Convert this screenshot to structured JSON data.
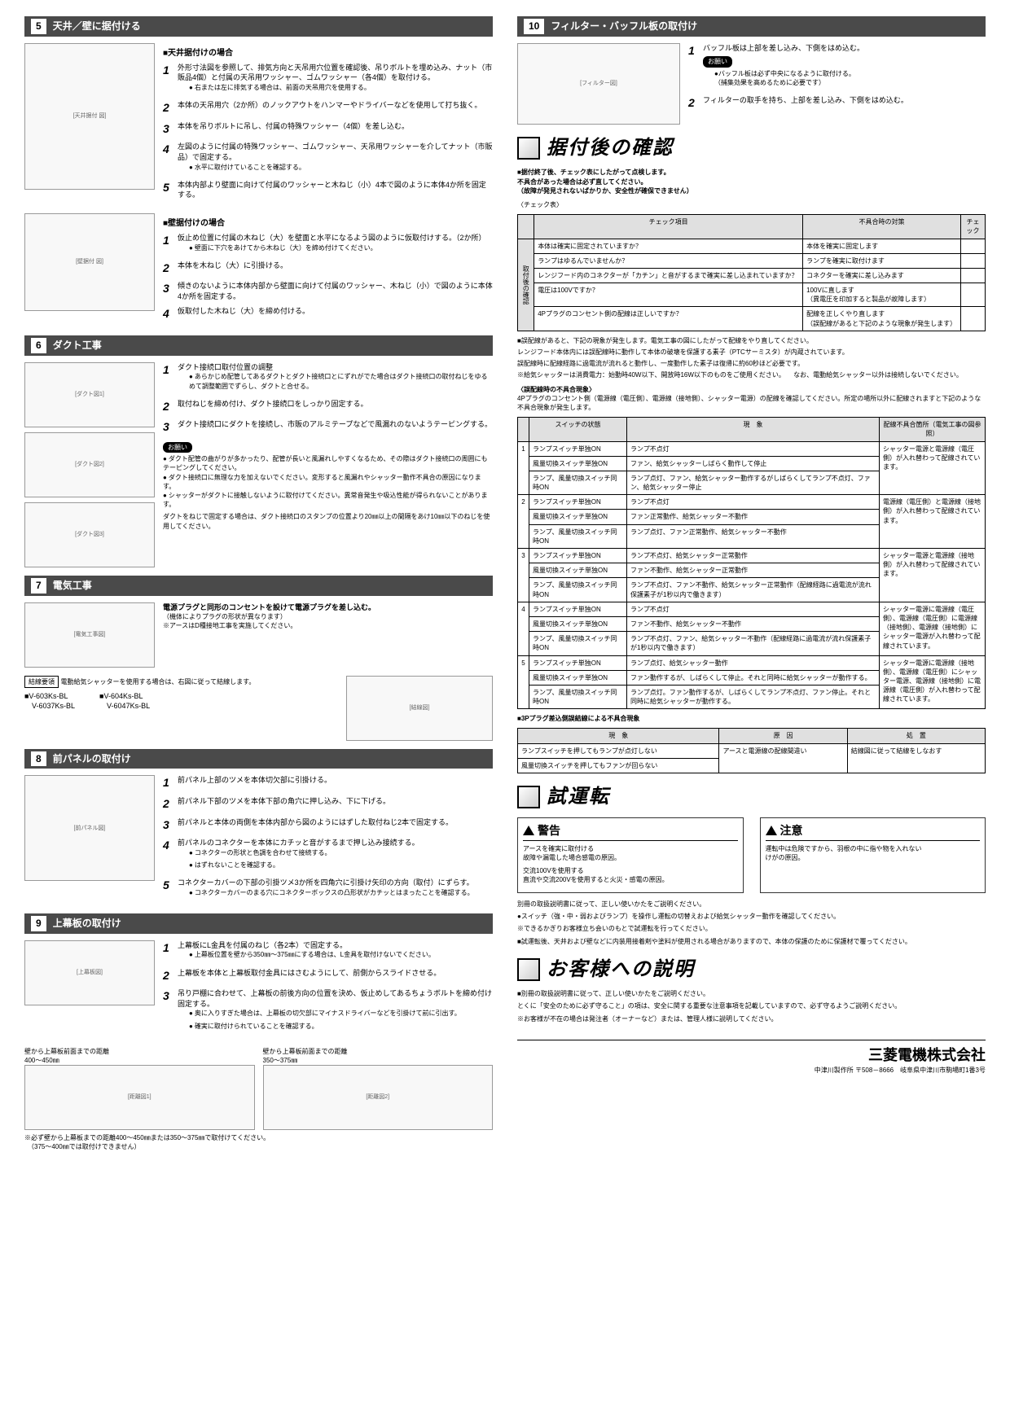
{
  "left": {
    "s5": {
      "num": "5",
      "title": "天井／壁に据付ける",
      "sub1": "■天井据付けの場合",
      "steps1": [
        {
          "n": "1",
          "t": "外形寸法図を参照して、排気方向と天吊用穴位置を確認後、吊りボルトを埋め込み、ナット（市販品4個）と付属の天吊用ワッシャー、ゴムワッシャー（各4個）を取付ける。",
          "note": "●右または左に排気する場合は、前面の天吊用穴を使用する。"
        },
        {
          "n": "2",
          "t": "本体の天吊用穴（2か所）のノックアウトをハンマーやドライバーなどを使用して打ち抜く。"
        },
        {
          "n": "3",
          "t": "本体を吊りボルトに吊し、付属の特殊ワッシャー（4個）を差し込む。"
        },
        {
          "n": "4",
          "t": "左図のように付属の特殊ワッシャー、ゴムワッシャー、天吊用ワッシャーを介してナット（市販品）で固定する。",
          "note": "●水平に取付けていることを確認する。"
        },
        {
          "n": "5",
          "t": "本体内部より壁面に向けて付属のワッシャーと木ねじ（小）4本で図のように本体4か所を固定する。"
        }
      ],
      "sub2": "■壁据付けの場合",
      "steps2": [
        {
          "n": "1",
          "t": "仮止め位置に付属の木ねじ（大）を壁面と水平になるよう図のように仮取付けする。（2か所）",
          "note": "●壁面に下穴をあけてから木ねじ（大）を締め付けてください。"
        },
        {
          "n": "2",
          "t": "本体を木ねじ（大）に引掛ける。"
        },
        {
          "n": "3",
          "t": "傾きのないように本体内部から壁面に向けて付属のワッシャー、木ねじ（小）で図のように本体4か所を固定する。"
        },
        {
          "n": "4",
          "t": "仮取付した木ねじ（大）を締め付ける。"
        }
      ]
    },
    "s6": {
      "num": "6",
      "title": "ダクト工事",
      "steps": [
        {
          "n": "1",
          "t": "ダクト接続口取付位置の調整",
          "note": "●あらかじめ配管してあるダクトとダクト接続口とにずれがでた場合はダクト接続口の取付ねじをゆるめて調整範囲でずらし、ダクトと合せる。"
        },
        {
          "n": "2",
          "t": "取付ねじを締め付け、ダクト接続口をしっかり固定する。"
        },
        {
          "n": "3",
          "t": "ダクト接続口にダクトを接続し、市販のアルミテープなどで風漏れのないようテーピングする。"
        }
      ],
      "warn_label": "お願い",
      "warns": [
        "ダクト配管の曲がりが多かったり、配管が長いと風漏れしやすくなるため、その際はダクト接続口の周囲にもテーピングしてください。",
        "ダクト接続口に無理な力を加えないでください。変形すると風漏れやシャッター動作不具合の原因になります。",
        "シャッターがダクトに接触しないように取付けてください。異常音発生や吸込性能が得られないことがあります。"
      ],
      "duct_note": "ダクトをねじで固定する場合は、ダクト接続口のスタンプの位置より20㎜以上の間隔をあけ10㎜以下のねじを使用してください。"
    },
    "s7": {
      "num": "7",
      "title": "電気工事",
      "main": "電源プラグと同形のコンセントを設けて電源プラグを差し込む。",
      "sub": "（機体によりプラグの形状が異なります）\n※アースはD種接地工事を実施してください。",
      "wire_label": "結線要領",
      "wire_text": "電動給気シャッターを使用する場合は、右図に従って結線します。",
      "models_l": [
        "■V-603Ks-BL",
        "　V-6037Ks-BL"
      ],
      "models_r": [
        "■V-604Ks-BL",
        "　V-6047Ks-BL"
      ]
    },
    "s8": {
      "num": "8",
      "title": "前パネルの取付け",
      "steps": [
        {
          "n": "1",
          "t": "前パネル上部のツメを本体切欠部に引掛ける。"
        },
        {
          "n": "2",
          "t": "前パネル下部のツメを本体下部の角穴に押し込み、下に下げる。"
        },
        {
          "n": "3",
          "t": "前パネルと本体の両側を本体内部から図のようにはずした取付ねじ2本で固定する。"
        },
        {
          "n": "4",
          "t": "前パネルのコネクターを本体にカチッと音がするまで押し込み接続する。",
          "notes": [
            "コネクターの形状と色調を合わせて接続する。",
            "はずれないことを確認する。"
          ]
        },
        {
          "n": "5",
          "t": "コネクターカバーの下部の引掛ツメ3か所を四角穴に引掛け矢印の方向（取付）にずらす。",
          "notes": [
            "コネクターカバーのまる穴にコネクターボックスの凸形状がカチッとはまったことを確認する。"
          ]
        }
      ]
    },
    "s9": {
      "num": "9",
      "title": "上幕板の取付け",
      "steps": [
        {
          "n": "1",
          "t": "上幕板にL金具を付属のねじ（各2本）で固定する。",
          "note": "●上幕板位置を壁から350㎜～375㎜にする場合は、L金具を取付けないでください。"
        },
        {
          "n": "2",
          "t": "上幕板を本体と上幕板取付金具にはさむようにして、前側からスライドさせる。"
        },
        {
          "n": "3",
          "t": "吊り戸棚に合わせて、上幕板の前後方向の位置を決め、仮止めしてあるちょうボルトを締め付け固定する。",
          "notes": [
            "奥に入りすぎた場合は、上幕板の切欠部にマイナスドライバーなどを引掛けて前に引出す。",
            "確実に取付けられていることを確認する。"
          ]
        }
      ],
      "dist1_label": "壁から上幕板前面までの距離\n400～450㎜",
      "dist2_label": "壁から上幕板前面までの距離\n350～375㎜",
      "foot": "※必ず壁から上幕板までの距離400～450㎜または350～375㎜で取付けてください。\n　（375～400㎜では取付けできません）"
    }
  },
  "right": {
    "s10": {
      "num": "10",
      "title": "フィルター・バッフル板の取付け",
      "steps": [
        {
          "n": "1",
          "t": "バッフル板は上部を差し込み、下側をはめ込む。",
          "warn_label": "お願い",
          "warn": "バッフル板は必ず中央になるように取付ける。\n（捕集効果を高めるために必要です）"
        },
        {
          "n": "2",
          "t": "フィルターの取手を持ち、上部を差し込み、下側をはめ込む。"
        }
      ]
    },
    "confirm": {
      "heading": "据付後の確認",
      "lead": "■据付終了後、チェック表にしたがって点検します。\n不具合があった場合は必ず直してください。\n（故障が発見されないばかりか、安全性が確保できません）",
      "tbl_label": "〈チェック表〉",
      "th": [
        "チェック項目",
        "不具合時の対策",
        "チェック"
      ],
      "rowhead": "取付後の確認",
      "rows": [
        [
          "本体は確実に固定されていますか？",
          "本体を確実に固定します",
          ""
        ],
        [
          "ランプはゆるんでいませんか？",
          "ランプを確実に取付けます",
          ""
        ],
        [
          "レンジフード内のコネクターが「カチン」と音がするまで確実に差し込まれていますか？",
          "コネクターを確実に差し込みます",
          ""
        ],
        [
          "電圧は100Vですか？",
          "100Vに直します\n（異電圧を印加すると製品が故障します）",
          ""
        ],
        [
          "4Pプラグのコンセント側の配線は正しいですか？",
          "配線を正しくやり直します\n（誤配線があると下記のような現象が発生します）",
          ""
        ]
      ],
      "after": [
        "■誤配線があると、下記の現象が発生します。電気工事の図にしたがって配線をやり直してください。",
        "レンジフード本体内には誤配線時に動作して本体の破壊を保護する素子（PTCサーミスタ）が内蔵されています。",
        "誤配線時に配線経路に過電流が流れると動作し、一度動作した素子は復帰に約60秒ほど必要です。",
        "※給気シャッターは消費電力：始動時40W以下、開放時16W以下のものをご使用ください。\n　なお、電動給気シャッター以外は接続しないでください。"
      ],
      "err_label": "〈誤配線時の不具合現象〉",
      "err_lead": "4Pプラグのコンセント側（電源線（電圧側）、電源線（接地側）、シャッター電源）の配線を確認してください。所定の場所以外に配線されますと下記のような不具合現象が発生します。",
      "tbl2_th": [
        "",
        "スイッチの状態",
        "現　象",
        "配線不具合箇所（電気工事の図参照）"
      ],
      "tbl2": [
        {
          "n": "1",
          "rows": [
            [
              "ランプスイッチ単独ON",
              "ランプ不点灯"
            ],
            [
              "風量切換スイッチ単独ON",
              "ファン、給気シャッターしばらく動作して停止"
            ],
            [
              "ランプ、風量切換スイッチ同時ON",
              "ランプ点灯、ファン、給気シャッター動作するがしばらくしてランプ不点灯、ファン、給気シャッター停止"
            ]
          ],
          "cause": "シャッター電源と電源線（電圧側）が入れ替わって配線されています。"
        },
        {
          "n": "2",
          "rows": [
            [
              "ランプスイッチ単独ON",
              "ランプ不点灯"
            ],
            [
              "風量切換スイッチ単独ON",
              "ファン正常動作、給気シャッター不動作"
            ],
            [
              "ランプ、風量切換スイッチ同時ON",
              "ランプ点灯、ファン正常動作、給気シャッター不動作"
            ]
          ],
          "cause": "電源線（電圧側）と電源線（接地側）が入れ替わって配線されています。"
        },
        {
          "n": "3",
          "rows": [
            [
              "ランプスイッチ単独ON",
              "ランプ不点灯、給気シャッター正常動作"
            ],
            [
              "風量切換スイッチ単独ON",
              "ファン不動作、給気シャッター正常動作"
            ],
            [
              "ランプ、風量切換スイッチ同時ON",
              "ランプ不点灯、ファン不動作、給気シャッター正常動作（配線経路に過電流が流れ保護素子が1秒以内で働きます）"
            ]
          ],
          "cause": "シャッター電源と電源線（接地側）が入れ替わって配線されています。"
        },
        {
          "n": "4",
          "rows": [
            [
              "ランプスイッチ単独ON",
              "ランプ不点灯"
            ],
            [
              "風量切換スイッチ単独ON",
              "ファン不動作、給気シャッター不動作"
            ],
            [
              "ランプ、風量切換スイッチ同時ON",
              "ランプ不点灯、ファン、給気シャッター不動作（配線経路に過電流が流れ保護素子が1秒以内で働きます）"
            ]
          ],
          "cause": "シャッター電源に電源線（電圧側）、電源線（電圧側）に電源線（接地側）、電源線（接地側）にシャッター電源が入れ替わって配線されています。"
        },
        {
          "n": "5",
          "rows": [
            [
              "ランプスイッチ単独ON",
              "ランプ点灯、給気シャッター動作"
            ],
            [
              "風量切換スイッチ単独ON",
              "ファン動作するが、しばらくして停止。それと同時に給気シャッターが動作する。"
            ],
            [
              "ランプ、風量切換スイッチ同時ON",
              "ランプ点灯。ファン動作するが、しばらくしてランプ不点灯、ファン停止。それと同時に給気シャッターが動作する。"
            ]
          ],
          "cause": "シャッター電源に電源線（接地側）、電源線（電圧側）にシャッター電源、電源線（接地側）に電源線（電圧側）が入れ替わって配線されています。"
        }
      ],
      "tbl3_label": "■3Pプラグ差込側誤結線による不具合現象",
      "tbl3_th": [
        "現　象",
        "原　因",
        "処　置"
      ],
      "tbl3": [
        [
          "ランプスイッチを押してもランプが点灯しない",
          "アースと電源線の配線間違い",
          "結線図に従って結線をしなおす"
        ],
        [
          "風量切換スイッチを押してもファンが回らない",
          "",
          ""
        ]
      ]
    },
    "test": {
      "heading": "試運転",
      "warn": {
        "title": "警告",
        "items": [
          "アースを確実に取付ける\n故障や漏電した場合感電の原因。",
          "交流100Vを使用する\n直流や交流200Vを使用すると火災・感電の原因。"
        ]
      },
      "caution": {
        "title": "注意",
        "items": [
          "運転中は危険ですから、羽根の中に指や物を入れない\nけがの原因。"
        ]
      },
      "body": [
        "別冊の取扱説明書に従って、正しい使いかたをご説明ください。",
        "●スイッチ（強・中・弱およびランプ）を操作し運転の切替えおよび給気シャッター動作を確認してください。",
        "※できるかぎりお客様立ち会いのもとで試運転を行ってください。",
        "■試運転後、天井および壁などに内装用接着剤や塗料が使用される場合がありますので、本体の保護のために保護材で覆ってください。"
      ]
    },
    "customer": {
      "heading": "お客様への説明",
      "body": [
        "■別冊の取扱説明書に従って、正しい使いかたをご説明ください。",
        "とくに「安全のために必ず守ること」の項は、安全に関する重要な注意事項を記載していますので、必ず守るようご説明ください。",
        "※お客様が不在の場合は発注者（オーナーなど）または、管理人様に説明してください。"
      ]
    },
    "footer": {
      "co": "三菱電機株式会社",
      "addr": "中津川製作所 〒508－8666　岐阜県中津川市駒場町1番3号"
    }
  }
}
